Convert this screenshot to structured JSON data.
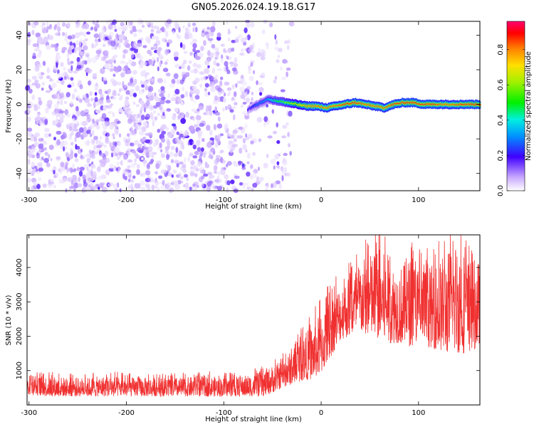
{
  "title": "GN05.2026.024.19.18.G17",
  "chart_data": [
    {
      "type": "heatmap",
      "title": "GN05.2026.024.19.18.G17",
      "xlabel": "Height of straight line (km)",
      "ylabel": "Frequency (Hz)",
      "xlim": [
        -302,
        163
      ],
      "ylim": [
        -50,
        48
      ],
      "xticks": [
        -300,
        -200,
        -100,
        0,
        100
      ],
      "yticks": [
        -40,
        -20,
        0,
        20,
        40
      ],
      "colorbar": {
        "label": "Normalized spectral amplitude",
        "range": [
          0,
          0.96
        ],
        "ticks": [
          0.0,
          0.2,
          0.4,
          0.6,
          0.8
        ]
      },
      "ridge": {
        "description": "narrow high-amplitude ridge near 0 Hz from about -50 km to the right edge",
        "x": [
          -75,
          -65,
          -55,
          -45,
          -35,
          -25,
          -15,
          -5,
          5,
          15,
          25,
          35,
          45,
          55,
          65,
          75,
          85,
          95,
          105,
          115,
          125,
          135,
          145,
          155,
          163
        ],
        "y": [
          -3,
          0,
          3,
          2,
          1,
          0,
          -1,
          -1,
          -2,
          -1,
          0,
          1,
          0,
          -1,
          -2,
          0,
          1,
          1,
          0,
          0,
          0,
          0,
          0,
          0,
          0
        ],
        "amplitude": [
          0.2,
          0.3,
          0.35,
          0.5,
          0.6,
          0.7,
          0.8,
          0.85,
          0.85,
          0.85,
          0.9,
          0.9,
          0.85,
          0.85,
          0.85,
          0.9,
          0.9,
          0.9,
          0.9,
          0.9,
          0.85,
          0.85,
          0.9,
          0.9,
          0.9
        ]
      },
      "noise_region": {
        "x_range": [
          -302,
          -30
        ],
        "amplitude": "low (about 0.0-0.2), scattered"
      }
    },
    {
      "type": "line",
      "xlabel": "Height of straight line (km)",
      "ylabel": "SNR (10 * v/v)",
      "xlim": [
        -302,
        163
      ],
      "ylim": [
        0,
        4950
      ],
      "xticks": [
        -300,
        -200,
        -100,
        0,
        100
      ],
      "yticks": [
        1000,
        2000,
        3000,
        4000
      ],
      "color": "#f03030",
      "series": [
        {
          "name": "SNR",
          "x": [
            -302,
            -280,
            -260,
            -240,
            -220,
            -200,
            -180,
            -160,
            -140,
            -120,
            -100,
            -80,
            -60,
            -50,
            -40,
            -30,
            -20,
            -10,
            0,
            10,
            20,
            30,
            40,
            50,
            60,
            70,
            80,
            90,
            100,
            110,
            120,
            130,
            140,
            150,
            163
          ],
          "low": [
            300,
            250,
            250,
            250,
            250,
            250,
            250,
            250,
            250,
            250,
            250,
            250,
            250,
            350,
            500,
            600,
            700,
            750,
            900,
            1400,
            1900,
            2000,
            2100,
            2000,
            1900,
            1800,
            1800,
            1700,
            1800,
            1700,
            1600,
            1500,
            1500,
            1500,
            1700
          ],
          "high": [
            800,
            850,
            800,
            800,
            850,
            800,
            800,
            800,
            800,
            850,
            800,
            850,
            950,
            1150,
            1300,
            1600,
            2000,
            2300,
            2700,
            3200,
            3500,
            3800,
            4200,
            4400,
            4600,
            4200,
            4000,
            4300,
            4100,
            4000,
            4200,
            4500,
            4900,
            4300,
            4200
          ]
        }
      ]
    }
  ]
}
